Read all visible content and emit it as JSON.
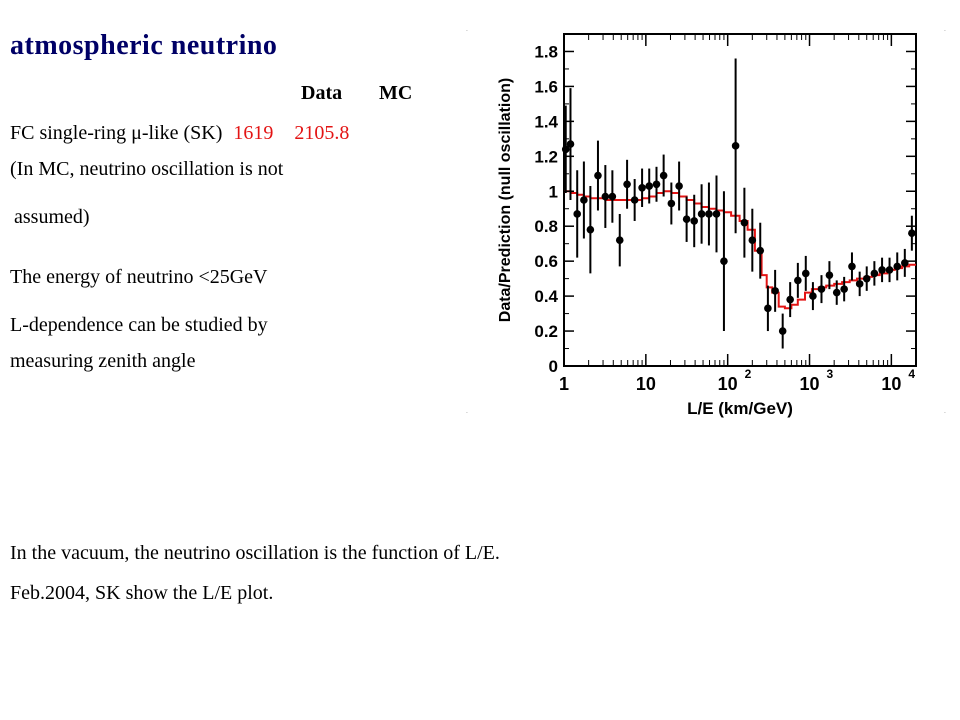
{
  "slide": {
    "title": "atmospheric neutrino",
    "header_data": "Data",
    "header_mc": "MC",
    "row_label": "FC single-ring μ-like (SK)",
    "row_data": "1619",
    "row_mc": "2105.8",
    "note_line1": "(In MC, neutrino oscillation is not",
    "note_line2": "assumed)",
    "energy_line": "The energy of neutrino <25GeV",
    "ldep_line1": "L-dependence can be studied by",
    "ldep_line2": "measuring zenith angle",
    "bottom_line1": "In the vacuum, the neutrino oscillation is the function of L/E.",
    "bottom_line2": "Feb.2004, SK show the L/E plot."
  },
  "colors": {
    "title": "#000066",
    "highlight": "#e31414",
    "mc_line": "#e31414",
    "points": "#000000"
  },
  "chart_data": {
    "type": "scatter",
    "title": "",
    "xlabel": "L/E (km/GeV)",
    "ylabel": "Data/Prediction (null oscillation)",
    "xscale": "log",
    "xlim": [
      1,
      20000
    ],
    "ylim": [
      0,
      1.9
    ],
    "x_ticks": [
      {
        "value": 1,
        "base": "1",
        "exp": ""
      },
      {
        "value": 10,
        "base": "10",
        "exp": ""
      },
      {
        "value": 100,
        "base": "10",
        "exp": "2"
      },
      {
        "value": 1000,
        "base": "10",
        "exp": "3"
      },
      {
        "value": 10000,
        "base": "10",
        "exp": "4"
      }
    ],
    "y_ticks": [
      "0",
      "0.2",
      "0.4",
      "0.6",
      "0.8",
      "1",
      "1.2",
      "1.4",
      "1.6",
      "1.8"
    ],
    "grid": false,
    "series": [
      {
        "kind": "data_points_with_errors",
        "points": [
          {
            "x": 1.05,
            "y": 1.24,
            "err": 0.25
          },
          {
            "x": 1.2,
            "y": 1.27,
            "err": 0.32
          },
          {
            "x": 1.45,
            "y": 0.87,
            "err": 0.25
          },
          {
            "x": 1.75,
            "y": 0.95,
            "err": 0.22
          },
          {
            "x": 2.1,
            "y": 0.78,
            "err": 0.25
          },
          {
            "x": 2.6,
            "y": 1.09,
            "err": 0.2
          },
          {
            "x": 3.2,
            "y": 0.97,
            "err": 0.18
          },
          {
            "x": 3.9,
            "y": 0.97,
            "err": 0.15
          },
          {
            "x": 4.8,
            "y": 0.72,
            "err": 0.15
          },
          {
            "x": 5.9,
            "y": 1.04,
            "err": 0.14
          },
          {
            "x": 7.3,
            "y": 0.95,
            "err": 0.12
          },
          {
            "x": 9.0,
            "y": 1.02,
            "err": 0.11
          },
          {
            "x": 11.0,
            "y": 1.03,
            "err": 0.1
          },
          {
            "x": 13.5,
            "y": 1.04,
            "err": 0.1
          },
          {
            "x": 16.5,
            "y": 1.09,
            "err": 0.12
          },
          {
            "x": 20.5,
            "y": 0.93,
            "err": 0.12
          },
          {
            "x": 25.5,
            "y": 1.03,
            "err": 0.14
          },
          {
            "x": 31.5,
            "y": 0.84,
            "err": 0.13
          },
          {
            "x": 39.0,
            "y": 0.83,
            "err": 0.15
          },
          {
            "x": 48.0,
            "y": 0.87,
            "err": 0.17
          },
          {
            "x": 59.0,
            "y": 0.87,
            "err": 0.18
          },
          {
            "x": 73.0,
            "y": 0.87,
            "err": 0.22
          },
          {
            "x": 90.0,
            "y": 0.6,
            "err": 0.4
          },
          {
            "x": 125.0,
            "y": 1.26,
            "err": 0.5
          },
          {
            "x": 160.0,
            "y": 0.82,
            "err": 0.2
          },
          {
            "x": 200.0,
            "y": 0.72,
            "err": 0.18
          },
          {
            "x": 250.0,
            "y": 0.66,
            "err": 0.16
          },
          {
            "x": 310.0,
            "y": 0.33,
            "err": 0.13
          },
          {
            "x": 380.0,
            "y": 0.43,
            "err": 0.12
          },
          {
            "x": 470.0,
            "y": 0.2,
            "err": 0.1
          },
          {
            "x": 580.0,
            "y": 0.38,
            "err": 0.1
          },
          {
            "x": 720.0,
            "y": 0.49,
            "err": 0.1
          },
          {
            "x": 900.0,
            "y": 0.53,
            "err": 0.1
          },
          {
            "x": 1100.0,
            "y": 0.4,
            "err": 0.08
          },
          {
            "x": 1400.0,
            "y": 0.44,
            "err": 0.08
          },
          {
            "x": 1750.0,
            "y": 0.52,
            "err": 0.08
          },
          {
            "x": 2150.0,
            "y": 0.42,
            "err": 0.07
          },
          {
            "x": 2650.0,
            "y": 0.44,
            "err": 0.07
          },
          {
            "x": 3300.0,
            "y": 0.57,
            "err": 0.08
          },
          {
            "x": 4100.0,
            "y": 0.47,
            "err": 0.07
          },
          {
            "x": 5000.0,
            "y": 0.5,
            "err": 0.07
          },
          {
            "x": 6200.0,
            "y": 0.53,
            "err": 0.07
          },
          {
            "x": 7700.0,
            "y": 0.55,
            "err": 0.07
          },
          {
            "x": 9500.0,
            "y": 0.55,
            "err": 0.07
          },
          {
            "x": 11800.0,
            "y": 0.57,
            "err": 0.08
          },
          {
            "x": 14600.0,
            "y": 0.59,
            "err": 0.08
          },
          {
            "x": 17800.0,
            "y": 0.76,
            "err": 0.1
          }
        ]
      },
      {
        "kind": "mc_histogram",
        "x": [
          1,
          1.2,
          1.45,
          1.75,
          2.1,
          2.6,
          3.2,
          3.9,
          4.8,
          5.9,
          7.3,
          9.0,
          11.0,
          13.5,
          16.5,
          20.5,
          25.5,
          31.5,
          39.0,
          48.0,
          59.0,
          73.0,
          90.0,
          110.0,
          140.0,
          175.0,
          215.0,
          260.0,
          300.0,
          350.0,
          420.0,
          500.0,
          600.0,
          720.0,
          880.0,
          1070.0,
          1300.0,
          1600.0,
          2000.0,
          2500.0,
          3100.0,
          3800.0,
          4700.0,
          5800.0,
          7200.0,
          8900.0,
          11000.0,
          13500.0,
          16500.0,
          20000.0
        ],
        "y": [
          1.0,
          0.99,
          0.98,
          0.97,
          0.96,
          0.96,
          0.95,
          0.95,
          0.95,
          0.95,
          0.95,
          0.96,
          0.97,
          0.99,
          1.0,
          0.99,
          0.97,
          0.95,
          0.93,
          0.91,
          0.9,
          0.89,
          0.88,
          0.86,
          0.83,
          0.78,
          0.66,
          0.52,
          0.45,
          0.42,
          0.34,
          0.33,
          0.35,
          0.38,
          0.42,
          0.44,
          0.45,
          0.46,
          0.47,
          0.48,
          0.49,
          0.5,
          0.51,
          0.52,
          0.53,
          0.55,
          0.56,
          0.57,
          0.58
        ]
      }
    ]
  }
}
